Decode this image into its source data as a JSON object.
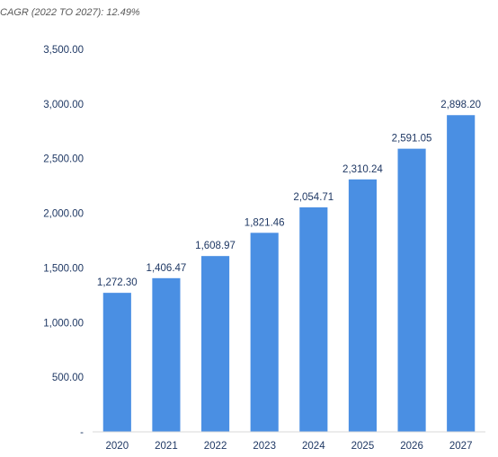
{
  "annotation": "CAGR (2022 TO 2027): 12.49%",
  "chart_data": {
    "type": "bar",
    "categories": [
      "2020",
      "2021",
      "2022",
      "2023",
      "2024",
      "2025",
      "2026",
      "2027"
    ],
    "values": [
      1272.3,
      1406.47,
      1608.97,
      1821.46,
      2054.71,
      2310.24,
      2591.05,
      2898.2
    ],
    "data_labels": [
      "1,272.30",
      "1,406.47",
      "1,608.97",
      "1,821.46",
      "2,054.71",
      "2,310.24",
      "2,591.05",
      "2,898.20"
    ],
    "y_ticks": [
      0,
      500,
      1000,
      1500,
      2000,
      2500,
      3000,
      3500
    ],
    "y_tick_labels": [
      "-",
      "500.00",
      "1,000.00",
      "1,500.00",
      "2,000.00",
      "2,500.00",
      "3,000.00",
      "3,500.00"
    ],
    "ylim": [
      0,
      3500
    ],
    "grid": false,
    "legend": "none",
    "bar_color": "#4a8fe3",
    "text_color": "#1f3864",
    "axis_line_color": "#d9d9d9"
  }
}
